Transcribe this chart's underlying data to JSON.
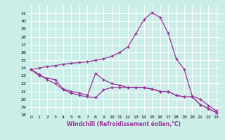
{
  "xlabel": "Windchill (Refroidissement éolien,°C)",
  "background_color": "#cceee8",
  "grid_color": "#ffffff",
  "line_color": "#993399",
  "xlim": [
    -0.5,
    23.5
  ],
  "ylim": [
    18,
    32
  ],
  "yticks": [
    18,
    19,
    20,
    21,
    22,
    23,
    24,
    25,
    26,
    27,
    28,
    29,
    30,
    31
  ],
  "xticks": [
    0,
    1,
    2,
    3,
    4,
    5,
    6,
    7,
    8,
    9,
    10,
    11,
    12,
    13,
    14,
    15,
    16,
    17,
    18,
    19,
    20,
    21,
    22,
    23
  ],
  "curve1_x": [
    0,
    1,
    2,
    3,
    4,
    5,
    6,
    7,
    8,
    9,
    10,
    11,
    12,
    13,
    14,
    15,
    16,
    17,
    18,
    19,
    20,
    21,
    22,
    23
  ],
  "curve1_y": [
    23.8,
    24.0,
    24.2,
    24.3,
    24.5,
    24.6,
    24.7,
    24.8,
    25.0,
    25.2,
    25.5,
    26.0,
    26.7,
    28.4,
    30.2,
    31.1,
    30.5,
    28.5,
    25.2,
    23.8,
    20.4,
    20.0,
    19.2,
    18.5
  ],
  "curve2_x": [
    0,
    1,
    2,
    3,
    4,
    5,
    6,
    7,
    8,
    9,
    10,
    11,
    12,
    13,
    14,
    15,
    16,
    17,
    18,
    19,
    20,
    21,
    22,
    23
  ],
  "curve2_y": [
    23.8,
    23.2,
    22.5,
    22.0,
    21.2,
    20.8,
    20.5,
    20.3,
    20.2,
    21.2,
    21.5,
    21.5,
    21.5,
    21.5,
    21.5,
    21.3,
    21.0,
    21.0,
    20.5,
    20.3,
    20.3,
    19.3,
    18.8,
    18.3
  ],
  "curve3_x": [
    0,
    1,
    2,
    3,
    4,
    5,
    6,
    7,
    8,
    9,
    10,
    11,
    12,
    13,
    14,
    15,
    16,
    17,
    18,
    19,
    20,
    21,
    22,
    23
  ],
  "curve3_y": [
    23.8,
    23.0,
    22.7,
    22.5,
    21.3,
    21.0,
    20.8,
    20.5,
    23.3,
    22.5,
    22.0,
    21.8,
    21.5,
    21.5,
    21.5,
    21.3,
    21.0,
    21.0,
    20.5,
    20.3,
    20.3,
    19.3,
    18.8,
    18.3
  ]
}
